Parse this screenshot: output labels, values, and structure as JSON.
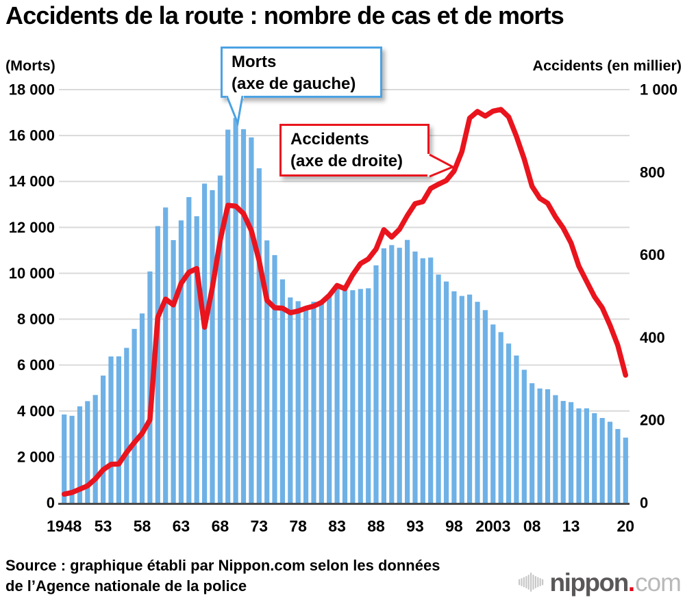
{
  "title": "Accidents de la route : nombre de cas et de morts",
  "left_axis": {
    "caption": "(Morts)",
    "tick_values": [
      0,
      2000,
      4000,
      6000,
      8000,
      10000,
      12000,
      14000,
      16000,
      18000
    ],
    "tick_labels": [
      "0",
      "2 000",
      "4 000",
      "6 000",
      "8 000",
      "10 000",
      "12 000",
      "14 000",
      "16 000",
      "18 000"
    ]
  },
  "right_axis": {
    "caption": "Accidents (en millier)",
    "tick_values": [
      0,
      200,
      400,
      600,
      800,
      1000
    ],
    "tick_labels": [
      "0",
      "200",
      "400",
      "600",
      "800",
      "1 000"
    ]
  },
  "x_axis": {
    "tick_years": [
      1948,
      1953,
      1958,
      1963,
      1968,
      1973,
      1978,
      1983,
      1988,
      1993,
      1998,
      2003,
      2008,
      2013,
      2020
    ],
    "tick_labels": [
      "1948",
      "53",
      "58",
      "63",
      "68",
      "73",
      "78",
      "83",
      "88",
      "93",
      "98",
      "2003",
      "08",
      "13",
      "20"
    ]
  },
  "callouts": {
    "morts": {
      "line1": "Morts",
      "line2": "(axe de gauche)"
    },
    "accidents": {
      "line1": "Accidents",
      "line2": "(axe de droite)"
    }
  },
  "source": {
    "line1": "Source : graphique établi par Nippon.com selon les données",
    "line2": "de l’Agence nationale de la police"
  },
  "logo": {
    "name": "nippon",
    "dot": ".",
    "tld": "com"
  },
  "colors": {
    "bar": "#6EB1E6",
    "line": "#E9141D",
    "callout_blue": "#4BA2E3",
    "callout_red": "#E9141D",
    "grid": "#D9D9D9",
    "axis": "#4A4A4A",
    "logo_gray": "#C7C7C7",
    "logo_red": "#E60012"
  },
  "chart_data": {
    "type": "bar+line",
    "title": "Accidents de la route : nombre de cas et de morts",
    "grid": true,
    "left_ylim": [
      0,
      18000
    ],
    "right_ylim": [
      0,
      1000
    ],
    "years": [
      1948,
      1949,
      1950,
      1951,
      1952,
      1953,
      1954,
      1955,
      1956,
      1957,
      1958,
      1959,
      1960,
      1961,
      1962,
      1963,
      1964,
      1965,
      1966,
      1967,
      1968,
      1969,
      1970,
      1971,
      1972,
      1973,
      1974,
      1975,
      1976,
      1977,
      1978,
      1979,
      1980,
      1981,
      1982,
      1983,
      1984,
      1985,
      1986,
      1987,
      1988,
      1989,
      1990,
      1991,
      1992,
      1993,
      1994,
      1995,
      1996,
      1997,
      1998,
      1999,
      2000,
      2001,
      2002,
      2003,
      2004,
      2005,
      2006,
      2007,
      2008,
      2009,
      2010,
      2011,
      2012,
      2013,
      2014,
      2015,
      2016,
      2017,
      2018,
      2019,
      2020
    ],
    "series": [
      {
        "name": "Morts (axe de gauche)",
        "type": "bar",
        "axis": "left",
        "values": [
          3848,
          3790,
          4202,
          4429,
          4696,
          5544,
          6374,
          6379,
          6751,
          7575,
          8248,
          10079,
          12055,
          12865,
          11445,
          12301,
          13318,
          12484,
          13904,
          13618,
          14256,
          16257,
          16765,
          16278,
          15918,
          14574,
          11432,
          10792,
          9734,
          8945,
          8783,
          8466,
          8760,
          8719,
          9073,
          9520,
          9262,
          9261,
          9317,
          9347,
          10344,
          11086,
          11227,
          11109,
          11452,
          10945,
          10653,
          10684,
          9943,
          9642,
          9214,
          9012,
          9073,
          8757,
          8396,
          7768,
          7436,
          6937,
          6415,
          5796,
          5209,
          4979,
          4948,
          4691,
          4438,
          4388,
          4113,
          4117,
          3904,
          3694,
          3532,
          3215,
          2839
        ]
      },
      {
        "name": "Accidents (axe de droite)",
        "type": "line",
        "axis": "right",
        "unit": "millier",
        "values": [
          21,
          25,
          33,
          41,
          58,
          80,
          93,
          94,
          122,
          146,
          168,
          201,
          449,
          493,
          479,
          531,
          558,
          567,
          425,
          521,
          635,
          720,
          718,
          700,
          659,
          586,
          490,
          472,
          471,
          460,
          464,
          471,
          476,
          485,
          502,
          526,
          518,
          552,
          579,
          590,
          614,
          661,
          643,
          662,
          695,
          724,
          729,
          761,
          771,
          780,
          803,
          850,
          931,
          947,
          936,
          948,
          952,
          934,
          887,
          832,
          766,
          737,
          725,
          692,
          665,
          629,
          573,
          536,
          499,
          472,
          430,
          381,
          309
        ]
      }
    ]
  }
}
